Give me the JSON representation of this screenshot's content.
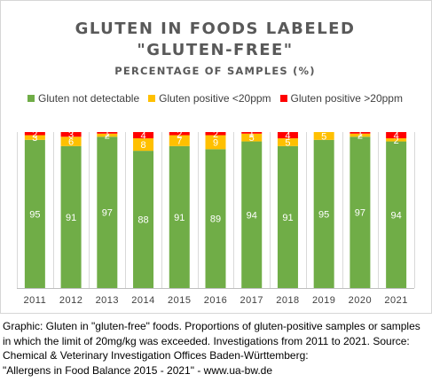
{
  "chart_data": {
    "type": "bar",
    "stacked": true,
    "title_line1": "GLUTEN IN FOODS LABELED",
    "title_line2": "\"GLUTEN-FREE\"",
    "subtitle": "PERCENTAGE OF SAMPLES (%)",
    "categories": [
      "2011",
      "2012",
      "2013",
      "2014",
      "2015",
      "2016",
      "2017",
      "2018",
      "2019",
      "2020",
      "2021"
    ],
    "series": [
      {
        "name": "Gluten not detectable",
        "color": "#70ad47",
        "values": [
          95,
          91,
          97,
          88,
          91,
          89,
          94,
          91,
          95,
          97,
          94
        ]
      },
      {
        "name": "Gluten positive <20ppm",
        "color": "#ffc000",
        "values": [
          3,
          6,
          2,
          8,
          7,
          9,
          5,
          5,
          5,
          2,
          2
        ]
      },
      {
        "name": "Gluten positive >20ppm",
        "color": "#ff0000",
        "values": [
          2,
          3,
          1,
          4,
          2,
          2,
          1,
          4,
          null,
          1,
          4
        ]
      }
    ],
    "ylim": [
      0,
      100
    ],
    "grid": true,
    "legend_position": "top"
  },
  "caption": [
    "Graphic: Gluten in \"gluten-free\" foods. Proportions of gluten-positive samples or samples",
    "in which the limit of 20mg/kg was exceeded. Investigations from 2011 to 2021. Source:",
    "Chemical & Veterinary Investigation Offices Baden-Württemberg:",
    "\"Allergens in Food Balance 2015 - 2021\" - www.ua-bw.de"
  ]
}
